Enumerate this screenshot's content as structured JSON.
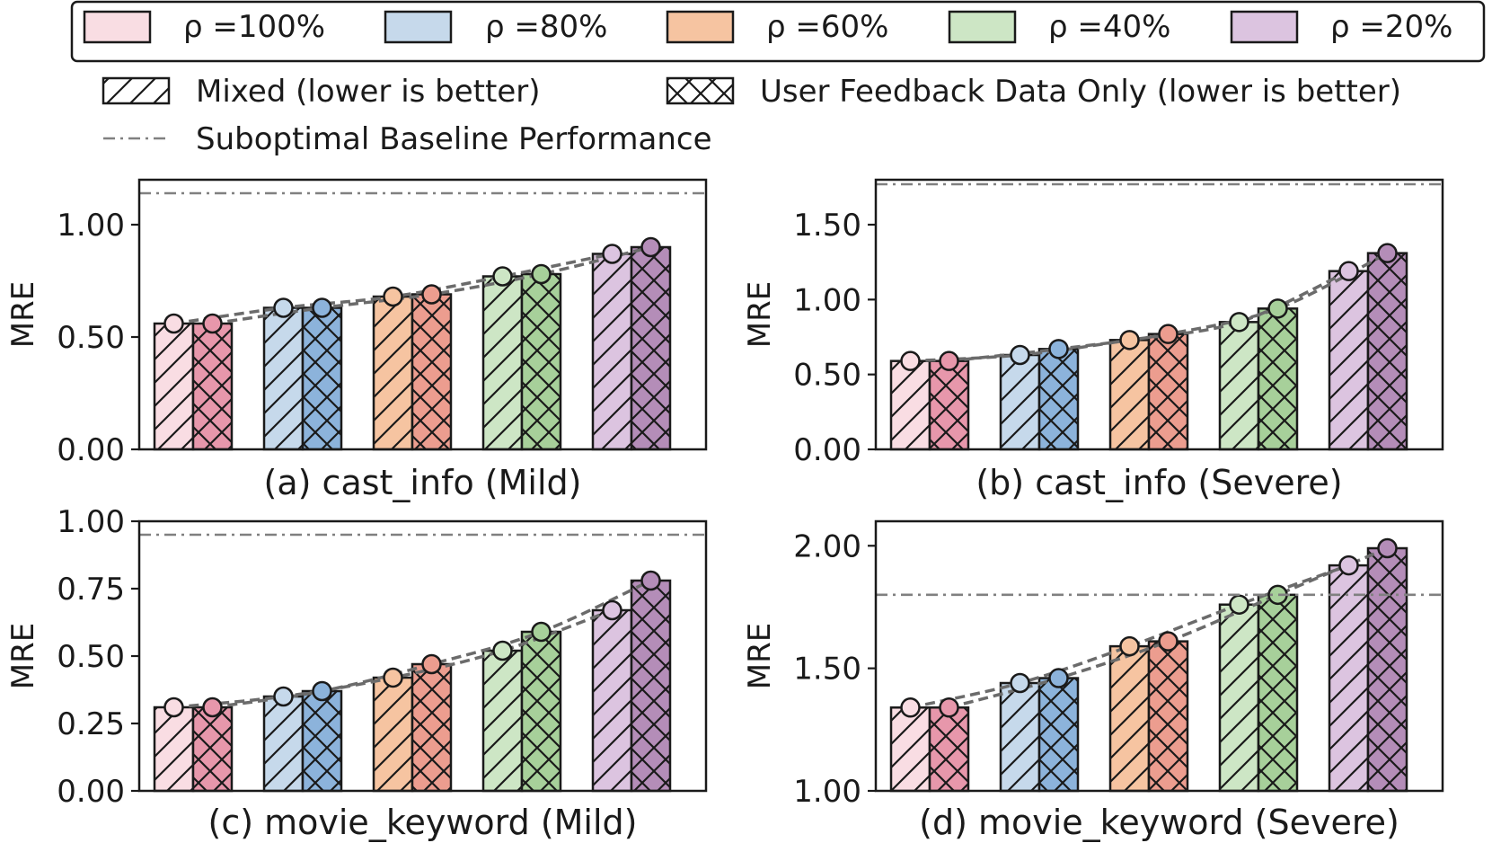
{
  "legend": {
    "rho_entries": [
      {
        "label": "ρ =100%",
        "color": "#f9dde3"
      },
      {
        "label": "ρ =80%",
        "color": "#c6d9eb"
      },
      {
        "label": "ρ =60%",
        "color": "#f6c4a1"
      },
      {
        "label": "ρ =40%",
        "color": "#cde6c5"
      },
      {
        "label": "ρ =20%",
        "color": "#dcc4e0"
      }
    ],
    "mixed_label": "Mixed (lower is better)",
    "feedback_label": "User Feedback Data Only (lower is better)",
    "baseline_label": "Suboptimal Baseline Performance"
  },
  "chart_data": [
    {
      "type": "bar",
      "title": "(a) cast_info (Mild)",
      "ylabel": "MRE",
      "ylim": [
        0,
        1.2
      ],
      "yticks": [
        0.0,
        0.5,
        1.0
      ],
      "ytick_labels": [
        "0.00",
        "0.50",
        "1.00"
      ],
      "categories": [
        "ρ =100%",
        "ρ =80%",
        "ρ =60%",
        "ρ =40%",
        "ρ =20%"
      ],
      "series": [
        {
          "name": "Mixed (lower is better)",
          "values": [
            0.56,
            0.63,
            0.68,
            0.77,
            0.87
          ]
        },
        {
          "name": "User Feedback Data Only (lower is better)",
          "values": [
            0.56,
            0.63,
            0.69,
            0.78,
            0.9
          ]
        }
      ],
      "baseline": 1.14
    },
    {
      "type": "bar",
      "title": "(b) cast_info (Severe)",
      "ylabel": "MRE",
      "ylim": [
        0,
        1.8
      ],
      "yticks": [
        0.0,
        0.5,
        1.0,
        1.5
      ],
      "ytick_labels": [
        "0.00",
        "0.50",
        "1.00",
        "1.50"
      ],
      "categories": [
        "ρ =100%",
        "ρ =80%",
        "ρ =60%",
        "ρ =40%",
        "ρ =20%"
      ],
      "series": [
        {
          "name": "Mixed (lower is better)",
          "values": [
            0.59,
            0.63,
            0.73,
            0.85,
            1.19
          ]
        },
        {
          "name": "User Feedback Data Only (lower is better)",
          "values": [
            0.59,
            0.67,
            0.77,
            0.94,
            1.31
          ]
        }
      ],
      "baseline": 1.77
    },
    {
      "type": "bar",
      "title": "(c) movie_keyword (Mild)",
      "ylabel": "MRE",
      "ylim": [
        0,
        1.0
      ],
      "yticks": [
        0.0,
        0.25,
        0.5,
        0.75,
        1.0
      ],
      "ytick_labels": [
        "0.00",
        "0.25",
        "0.50",
        "0.75",
        "1.00"
      ],
      "categories": [
        "ρ =100%",
        "ρ =80%",
        "ρ =60%",
        "ρ =40%",
        "ρ =20%"
      ],
      "series": [
        {
          "name": "Mixed (lower is better)",
          "values": [
            0.31,
            0.35,
            0.42,
            0.52,
            0.67
          ]
        },
        {
          "name": "User Feedback Data Only (lower is better)",
          "values": [
            0.31,
            0.37,
            0.47,
            0.59,
            0.78
          ]
        }
      ],
      "baseline": 0.95
    },
    {
      "type": "bar",
      "title": "(d) movie_keyword (Severe)",
      "ylabel": "MRE",
      "ylim": [
        1.0,
        2.1
      ],
      "yticks": [
        1.0,
        1.5,
        2.0
      ],
      "ytick_labels": [
        "1.00",
        "1.50",
        "2.00"
      ],
      "categories": [
        "ρ =100%",
        "ρ =80%",
        "ρ =60%",
        "ρ =40%",
        "ρ =20%"
      ],
      "series": [
        {
          "name": "Mixed (lower is better)",
          "values": [
            1.34,
            1.44,
            1.59,
            1.76,
            1.92
          ]
        },
        {
          "name": "User Feedback Data Only (lower is better)",
          "values": [
            1.34,
            1.46,
            1.61,
            1.8,
            1.99
          ]
        }
      ],
      "baseline": 1.8
    }
  ],
  "colors": {
    "mixed": [
      "#f9dde3",
      "#c6d9eb",
      "#f6c4a1",
      "#cde6c5",
      "#dcc4e0"
    ],
    "feedback": [
      "#e797ab",
      "#8cb3db",
      "#ec9d8f",
      "#a7d09a",
      "#b48db8"
    ],
    "baseline": "#808080",
    "trend": "#6b6b6b"
  }
}
